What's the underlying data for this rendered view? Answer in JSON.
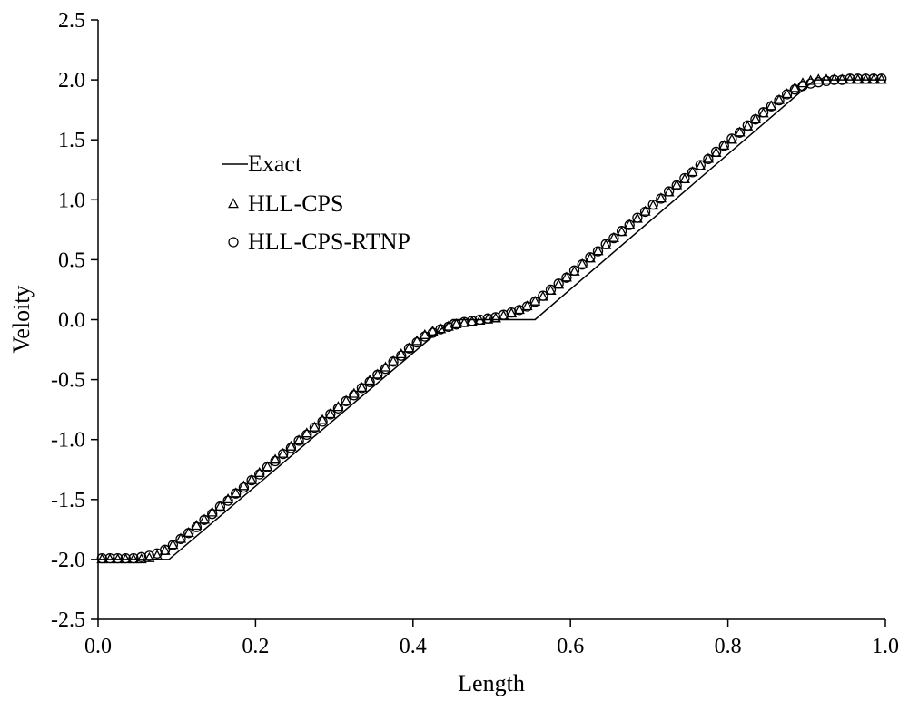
{
  "chart_data": {
    "type": "line",
    "xlabel": "Length",
    "ylabel": "Veloity",
    "xlim": [
      0,
      1
    ],
    "ylim": [
      -2.5,
      2.5
    ],
    "x_ticks": [
      "0.0",
      "0.2",
      "0.4",
      "0.6",
      "0.8",
      "1.0"
    ],
    "y_ticks": [
      "2.5",
      "2.0",
      "1.5",
      "1.0",
      "0.5",
      "0.0",
      "-0.5",
      "-1.0",
      "-1.5",
      "-2.0",
      "-2.5"
    ],
    "grid": false,
    "legend_position": "upper-left",
    "series": [
      {
        "name": "Exact",
        "marker": "line",
        "x": [
          0.0,
          0.09,
          0.45,
          0.555,
          0.91,
          1.0
        ],
        "y": [
          -2.0,
          -2.0,
          0.0,
          0.0,
          2.0,
          2.0
        ]
      },
      {
        "name": "HLL-CPS",
        "marker": "triangle",
        "x": [
          0.005,
          0.015,
          0.025,
          0.035,
          0.045,
          0.055,
          0.065,
          0.075,
          0.085,
          0.095,
          0.105,
          0.115,
          0.125,
          0.135,
          0.145,
          0.155,
          0.165,
          0.175,
          0.185,
          0.195,
          0.205,
          0.215,
          0.225,
          0.235,
          0.245,
          0.255,
          0.265,
          0.275,
          0.285,
          0.295,
          0.305,
          0.315,
          0.325,
          0.335,
          0.345,
          0.355,
          0.365,
          0.375,
          0.385,
          0.395,
          0.405,
          0.415,
          0.425,
          0.435,
          0.445,
          0.455,
          0.465,
          0.475,
          0.485,
          0.495,
          0.505,
          0.515,
          0.525,
          0.535,
          0.545,
          0.555,
          0.565,
          0.575,
          0.585,
          0.595,
          0.605,
          0.615,
          0.625,
          0.635,
          0.645,
          0.655,
          0.665,
          0.675,
          0.685,
          0.695,
          0.705,
          0.715,
          0.725,
          0.735,
          0.745,
          0.755,
          0.765,
          0.775,
          0.785,
          0.795,
          0.805,
          0.815,
          0.825,
          0.835,
          0.845,
          0.855,
          0.865,
          0.875,
          0.885,
          0.895,
          0.905,
          0.915,
          0.925,
          0.935,
          0.945,
          0.955,
          0.965,
          0.975,
          0.985,
          0.995
        ],
        "y": [
          -2.0,
          -2.0,
          -2.0,
          -2.0,
          -2.0,
          -2.0,
          -1.99,
          -1.97,
          -1.93,
          -1.88,
          -1.83,
          -1.78,
          -1.72,
          -1.67,
          -1.61,
          -1.56,
          -1.5,
          -1.45,
          -1.39,
          -1.34,
          -1.28,
          -1.23,
          -1.17,
          -1.12,
          -1.06,
          -1.01,
          -0.95,
          -0.9,
          -0.84,
          -0.79,
          -0.73,
          -0.68,
          -0.62,
          -0.57,
          -0.51,
          -0.46,
          -0.4,
          -0.35,
          -0.29,
          -0.24,
          -0.18,
          -0.13,
          -0.1,
          -0.08,
          -0.06,
          -0.04,
          -0.03,
          -0.02,
          -0.01,
          0.0,
          0.01,
          0.03,
          0.05,
          0.08,
          0.11,
          0.15,
          0.19,
          0.24,
          0.29,
          0.35,
          0.4,
          0.46,
          0.51,
          0.57,
          0.62,
          0.68,
          0.73,
          0.79,
          0.84,
          0.9,
          0.95,
          1.01,
          1.06,
          1.12,
          1.17,
          1.23,
          1.28,
          1.34,
          1.39,
          1.45,
          1.5,
          1.56,
          1.61,
          1.67,
          1.72,
          1.78,
          1.83,
          1.88,
          1.93,
          1.97,
          1.99,
          2.0,
          2.0,
          2.0,
          2.0,
          2.0,
          2.0,
          2.0,
          2.0,
          2.0
        ]
      },
      {
        "name": "HLL-CPS-RTNP",
        "marker": "circle",
        "x": [
          0.005,
          0.015,
          0.025,
          0.035,
          0.045,
          0.055,
          0.065,
          0.075,
          0.085,
          0.095,
          0.105,
          0.115,
          0.125,
          0.135,
          0.145,
          0.155,
          0.165,
          0.175,
          0.185,
          0.195,
          0.205,
          0.215,
          0.225,
          0.235,
          0.245,
          0.255,
          0.265,
          0.275,
          0.285,
          0.295,
          0.305,
          0.315,
          0.325,
          0.335,
          0.345,
          0.355,
          0.365,
          0.375,
          0.385,
          0.395,
          0.405,
          0.415,
          0.425,
          0.435,
          0.445,
          0.455,
          0.465,
          0.475,
          0.485,
          0.495,
          0.505,
          0.515,
          0.525,
          0.535,
          0.545,
          0.555,
          0.565,
          0.575,
          0.585,
          0.595,
          0.605,
          0.615,
          0.625,
          0.635,
          0.645,
          0.655,
          0.665,
          0.675,
          0.685,
          0.695,
          0.705,
          0.715,
          0.725,
          0.735,
          0.745,
          0.755,
          0.765,
          0.775,
          0.785,
          0.795,
          0.805,
          0.815,
          0.825,
          0.835,
          0.845,
          0.855,
          0.865,
          0.875,
          0.885,
          0.895,
          0.905,
          0.915,
          0.925,
          0.935,
          0.945,
          0.955,
          0.965,
          0.975,
          0.985,
          0.995
        ],
        "y": [
          -1.99,
          -1.99,
          -1.99,
          -1.99,
          -1.99,
          -1.98,
          -1.97,
          -1.95,
          -1.92,
          -1.88,
          -1.83,
          -1.78,
          -1.73,
          -1.67,
          -1.62,
          -1.56,
          -1.51,
          -1.45,
          -1.4,
          -1.34,
          -1.29,
          -1.23,
          -1.18,
          -1.12,
          -1.07,
          -1.01,
          -0.96,
          -0.9,
          -0.85,
          -0.79,
          -0.74,
          -0.68,
          -0.63,
          -0.57,
          -0.52,
          -0.46,
          -0.41,
          -0.35,
          -0.3,
          -0.24,
          -0.19,
          -0.14,
          -0.11,
          -0.08,
          -0.06,
          -0.04,
          -0.02,
          -0.01,
          0.0,
          0.01,
          0.02,
          0.04,
          0.06,
          0.08,
          0.11,
          0.15,
          0.2,
          0.25,
          0.3,
          0.35,
          0.41,
          0.46,
          0.52,
          0.57,
          0.63,
          0.68,
          0.74,
          0.79,
          0.85,
          0.9,
          0.96,
          1.01,
          1.07,
          1.12,
          1.18,
          1.23,
          1.29,
          1.34,
          1.4,
          1.45,
          1.51,
          1.56,
          1.62,
          1.67,
          1.73,
          1.78,
          1.83,
          1.88,
          1.92,
          1.95,
          1.97,
          1.98,
          1.99,
          2.0,
          2.0,
          2.01,
          2.01,
          2.01,
          2.01,
          2.01
        ]
      }
    ]
  }
}
